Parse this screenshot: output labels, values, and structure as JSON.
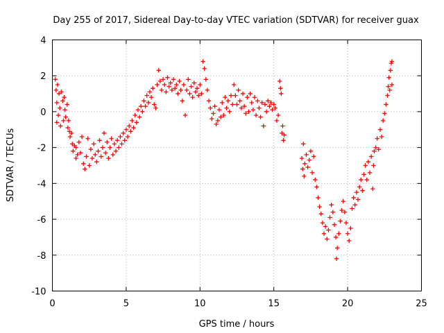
{
  "chart_data": {
    "type": "scatter",
    "title": "Day 255 of 2017, Sidereal Day-to-day VTEC variation (SDTVAR) for receiver guax",
    "xlabel": "GPS time / hours",
    "ylabel": "SDTVAR / TECUs",
    "xlim": [
      0,
      25
    ],
    "ylim": [
      -10,
      4
    ],
    "x_ticks": [
      "0",
      "5",
      "10",
      "15",
      "20",
      "25"
    ],
    "y_ticks": [
      "4",
      "2",
      "0",
      "-2",
      "-4",
      "-6",
      "-8",
      "-10"
    ],
    "grid": true,
    "marker": "+",
    "color": "#ff0000",
    "series": [
      {
        "name": "SDTVAR",
        "points": [
          [
            0.2,
            1.8
          ],
          [
            0.25,
            1.2
          ],
          [
            0.3,
            0.5
          ],
          [
            0.3,
            -0.6
          ],
          [
            0.35,
            1.5
          ],
          [
            0.4,
            -0.2
          ],
          [
            0.45,
            1.0
          ],
          [
            0.5,
            0.2
          ],
          [
            0.55,
            -0.8
          ],
          [
            0.6,
            1.1
          ],
          [
            0.7,
            0.6
          ],
          [
            0.75,
            -0.5
          ],
          [
            0.8,
            0.8
          ],
          [
            0.85,
            0.1
          ],
          [
            0.9,
            -0.3
          ],
          [
            1.0,
            0.4
          ],
          [
            1.05,
            -0.9
          ],
          [
            1.1,
            -0.5
          ],
          [
            1.15,
            -1.1
          ],
          [
            1.2,
            -1.4
          ],
          [
            1.3,
            -1.2
          ],
          [
            1.35,
            -1.8
          ],
          [
            1.4,
            -2.2
          ],
          [
            1.5,
            -1.9
          ],
          [
            1.6,
            -2.0
          ],
          [
            1.6,
            -2.6
          ],
          [
            1.7,
            -2.4
          ],
          [
            1.8,
            -1.7
          ],
          [
            1.9,
            -2.3
          ],
          [
            2.0,
            -1.4
          ],
          [
            2.1,
            -2.9
          ],
          [
            2.2,
            -3.2
          ],
          [
            2.3,
            -2.5
          ],
          [
            2.4,
            -1.5
          ],
          [
            2.5,
            -3.0
          ],
          [
            2.6,
            -2.1
          ],
          [
            2.7,
            -2.6
          ],
          [
            2.8,
            -1.8
          ],
          [
            2.9,
            -2.4
          ],
          [
            3.0,
            -2.8
          ],
          [
            3.1,
            -2.2
          ],
          [
            3.2,
            -1.6
          ],
          [
            3.3,
            -2.5
          ],
          [
            3.4,
            -2.0
          ],
          [
            3.5,
            -1.2
          ],
          [
            3.6,
            -2.3
          ],
          [
            3.7,
            -1.7
          ],
          [
            3.8,
            -2.6
          ],
          [
            3.9,
            -2.0
          ],
          [
            4.0,
            -1.5
          ],
          [
            4.1,
            -2.4
          ],
          [
            4.2,
            -1.8
          ],
          [
            4.3,
            -2.2
          ],
          [
            4.4,
            -1.6
          ],
          [
            4.5,
            -2.0
          ],
          [
            4.6,
            -1.4
          ],
          [
            4.7,
            -1.8
          ],
          [
            4.8,
            -1.2
          ],
          [
            4.9,
            -1.6
          ],
          [
            5.0,
            -1.0
          ],
          [
            5.1,
            -1.4
          ],
          [
            5.2,
            -0.8
          ],
          [
            5.3,
            -1.1
          ],
          [
            5.4,
            -0.5
          ],
          [
            5.5,
            -0.9
          ],
          [
            5.6,
            -0.2
          ],
          [
            5.7,
            -0.6
          ],
          [
            5.8,
            0.1
          ],
          [
            5.9,
            -0.3
          ],
          [
            6.0,
            0.3
          ],
          [
            6.1,
            0.0
          ],
          [
            6.2,
            0.6
          ],
          [
            6.3,
            0.3
          ],
          [
            6.4,
            0.9
          ],
          [
            6.5,
            0.5
          ],
          [
            6.6,
            1.1
          ],
          [
            6.7,
            0.8
          ],
          [
            6.8,
            1.3
          ],
          [
            6.9,
            0.4
          ],
          [
            7.0,
            0.2
          ],
          [
            7.1,
            1.5
          ],
          [
            7.2,
            2.3
          ],
          [
            7.3,
            1.7
          ],
          [
            7.4,
            1.2
          ],
          [
            7.5,
            1.8
          ],
          [
            7.6,
            1.5
          ],
          [
            7.7,
            1.1
          ],
          [
            7.8,
            1.9
          ],
          [
            7.9,
            1.4
          ],
          [
            8.0,
            1.6
          ],
          [
            8.1,
            1.2
          ],
          [
            8.2,
            1.8
          ],
          [
            8.3,
            1.3
          ],
          [
            8.4,
            1.5
          ],
          [
            8.5,
            1.0
          ],
          [
            8.6,
            1.7
          ],
          [
            8.7,
            1.2
          ],
          [
            8.8,
            0.6
          ],
          [
            8.9,
            1.5
          ],
          [
            9.0,
            -0.2
          ],
          [
            9.1,
            1.2
          ],
          [
            9.2,
            1.8
          ],
          [
            9.3,
            1.0
          ],
          [
            9.4,
            1.4
          ],
          [
            9.5,
            0.8
          ],
          [
            9.6,
            1.6
          ],
          [
            9.7,
            1.1
          ],
          [
            9.8,
            1.3
          ],
          [
            9.9,
            0.9
          ],
          [
            10.0,
            1.5
          ],
          [
            10.1,
            1.0
          ],
          [
            10.2,
            2.8
          ],
          [
            10.3,
            2.4
          ],
          [
            10.4,
            1.8
          ],
          [
            10.5,
            1.2
          ],
          [
            10.6,
            0.6
          ],
          [
            10.7,
            0.2
          ],
          [
            10.8,
            -0.4
          ],
          [
            10.9,
            -0.1
          ],
          [
            11.0,
            0.3
          ],
          [
            11.1,
            -0.7
          ],
          [
            11.2,
            -0.5
          ],
          [
            11.3,
            0.1
          ],
          [
            11.4,
            -0.3
          ],
          [
            11.5,
            0.5
          ],
          [
            11.6,
            -0.2
          ],
          [
            11.7,
            0.8
          ],
          [
            11.8,
            0.2
          ],
          [
            11.9,
            0.6
          ],
          [
            12.0,
            0.0
          ],
          [
            12.1,
            0.9
          ],
          [
            12.2,
            0.4
          ],
          [
            12.3,
            1.5
          ],
          [
            12.4,
            0.9
          ],
          [
            12.5,
            0.4
          ],
          [
            12.6,
            1.2
          ],
          [
            12.7,
            0.6
          ],
          [
            12.8,
            0.2
          ],
          [
            12.9,
            1.0
          ],
          [
            13.0,
            0.3
          ],
          [
            13.1,
            -0.1
          ],
          [
            13.2,
            0.8
          ],
          [
            13.3,
            0.0
          ],
          [
            13.4,
            1.0
          ],
          [
            13.5,
            0.5
          ],
          [
            13.6,
            0.1
          ],
          [
            13.7,
            0.8
          ],
          [
            13.8,
            -0.2
          ],
          [
            13.9,
            0.6
          ],
          [
            14.0,
            0.2
          ],
          [
            14.1,
            -0.3
          ],
          [
            14.2,
            0.5
          ],
          [
            14.3,
            -0.8
          ],
          [
            14.4,
            0.4
          ],
          [
            14.5,
            0.0
          ],
          [
            14.6,
            0.6
          ],
          [
            14.7,
            0.3
          ],
          [
            14.8,
            0.5
          ],
          [
            14.9,
            0.1
          ],
          [
            15.0,
            0.4
          ],
          [
            15.1,
            0.2
          ],
          [
            15.2,
            -0.5
          ],
          [
            15.3,
            -0.2
          ],
          [
            15.4,
            1.7
          ],
          [
            15.45,
            1.3
          ],
          [
            15.5,
            1.0
          ],
          [
            15.55,
            -1.2
          ],
          [
            15.6,
            -0.8
          ],
          [
            15.65,
            -1.6
          ],
          [
            15.7,
            -1.3
          ],
          [
            16.9,
            -2.6
          ],
          [
            16.95,
            -3.2
          ],
          [
            17.0,
            -1.8
          ],
          [
            17.05,
            -3.6
          ],
          [
            17.1,
            -2.9
          ],
          [
            17.2,
            -2.4
          ],
          [
            17.3,
            -3.1
          ],
          [
            17.4,
            -2.7
          ],
          [
            17.5,
            -2.2
          ],
          [
            17.6,
            -3.4
          ],
          [
            17.7,
            -2.5
          ],
          [
            17.8,
            -3.8
          ],
          [
            17.9,
            -4.2
          ],
          [
            18.0,
            -4.8
          ],
          [
            18.1,
            -5.3
          ],
          [
            18.2,
            -5.7
          ],
          [
            18.3,
            -6.2
          ],
          [
            18.4,
            -6.8
          ],
          [
            18.5,
            -6.4
          ],
          [
            18.6,
            -7.1
          ],
          [
            18.7,
            -6.6
          ],
          [
            18.8,
            -5.9
          ],
          [
            18.9,
            -5.2
          ],
          [
            19.0,
            -5.6
          ],
          [
            19.1,
            -6.3
          ],
          [
            19.2,
            -7.0
          ],
          [
            19.25,
            -8.2
          ],
          [
            19.3,
            -7.6
          ],
          [
            19.4,
            -6.8
          ],
          [
            19.5,
            -6.1
          ],
          [
            19.6,
            -5.5
          ],
          [
            19.7,
            -5.0
          ],
          [
            19.8,
            -5.6
          ],
          [
            19.9,
            -6.2
          ],
          [
            20.0,
            -6.8
          ],
          [
            20.1,
            -7.2
          ],
          [
            20.2,
            -6.5
          ],
          [
            20.3,
            -5.4
          ],
          [
            20.4,
            -4.8
          ],
          [
            20.5,
            -5.2
          ],
          [
            20.6,
            -4.5
          ],
          [
            20.7,
            -4.9
          ],
          [
            20.8,
            -4.2
          ],
          [
            20.9,
            -3.8
          ],
          [
            21.0,
            -4.4
          ],
          [
            21.1,
            -3.5
          ],
          [
            21.2,
            -3.0
          ],
          [
            21.3,
            -3.8
          ],
          [
            21.4,
            -2.8
          ],
          [
            21.5,
            -3.4
          ],
          [
            21.6,
            -2.5
          ],
          [
            21.7,
            -4.3
          ],
          [
            21.75,
            -3.0
          ],
          [
            21.8,
            -2.2
          ],
          [
            21.9,
            -2.0
          ],
          [
            22.0,
            -1.5
          ],
          [
            22.1,
            -2.1
          ],
          [
            22.2,
            -1.0
          ],
          [
            22.3,
            -1.4
          ],
          [
            22.4,
            -0.5
          ],
          [
            22.5,
            -0.1
          ],
          [
            22.6,
            0.4
          ],
          [
            22.7,
            0.9
          ],
          [
            22.75,
            1.4
          ],
          [
            22.8,
            1.9
          ],
          [
            22.85,
            1.2
          ],
          [
            22.9,
            2.3
          ],
          [
            22.95,
            2.7
          ],
          [
            23.0,
            2.8
          ],
          [
            23.0,
            1.5
          ]
        ]
      }
    ]
  }
}
